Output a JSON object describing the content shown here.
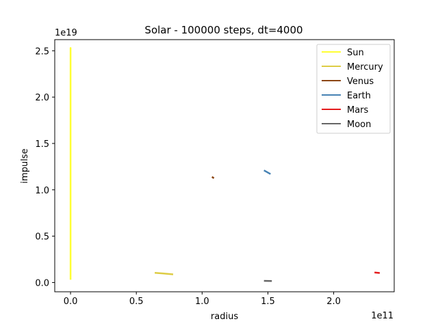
{
  "chart_data": {
    "type": "line",
    "title": "Solar - 100000 steps, dt=4000",
    "xlabel": "radius",
    "ylabel": "impulse",
    "x_offset_label": "1e11",
    "y_offset_label": "1e19",
    "xlim": [
      -12000000000.0,
      246000000000.0
    ],
    "ylim": [
      -1e+18,
      2.62e+19
    ],
    "x_ticks": [
      0,
      50000000000.0,
      100000000000.0,
      150000000000.0,
      200000000000.0
    ],
    "x_tick_labels": [
      "0.0",
      "0.5",
      "1.0",
      "1.5",
      "2.0"
    ],
    "y_ticks": [
      0,
      5e+18,
      1e+19,
      1.5e+19,
      2e+19,
      2.5e+19
    ],
    "y_tick_labels": [
      "0.0",
      "0.5",
      "1.0",
      "1.5",
      "2.0",
      "2.5"
    ],
    "grid": false,
    "legend_position": "top-right",
    "series": [
      {
        "name": "Sun",
        "color": "#ffff33",
        "x": [
          0,
          0,
          0,
          0
        ],
        "y": [
          3e+17,
          8e+18,
          2.53e+19,
          3e+17
        ]
      },
      {
        "name": "Mercury",
        "color": "#ddcc44",
        "x": [
          64000000000.0,
          70000000000.0,
          78000000000.0
        ],
        "y": [
          1.05e+18,
          9.8e+17,
          8.8e+17
        ]
      },
      {
        "name": "Venus",
        "color": "#8b4513",
        "x": [
          107500000000.0,
          109000000000.0
        ],
        "y": [
          1.14e+19,
          1.125e+19
        ]
      },
      {
        "name": "Earth",
        "color": "#4682b4",
        "x": [
          147000000000.0,
          152000000000.0
        ],
        "y": [
          1.21e+19,
          1.17e+19
        ]
      },
      {
        "name": "Mars",
        "color": "#e41a1c",
        "x": [
          231000000000.0,
          235000000000.0
        ],
        "y": [
          1.08e+18,
          1.03e+18
        ]
      },
      {
        "name": "Moon",
        "color": "#666666",
        "x": [
          147000000000.0,
          153000000000.0
        ],
        "y": [
          1.8e+17,
          1.6e+17
        ]
      }
    ]
  }
}
